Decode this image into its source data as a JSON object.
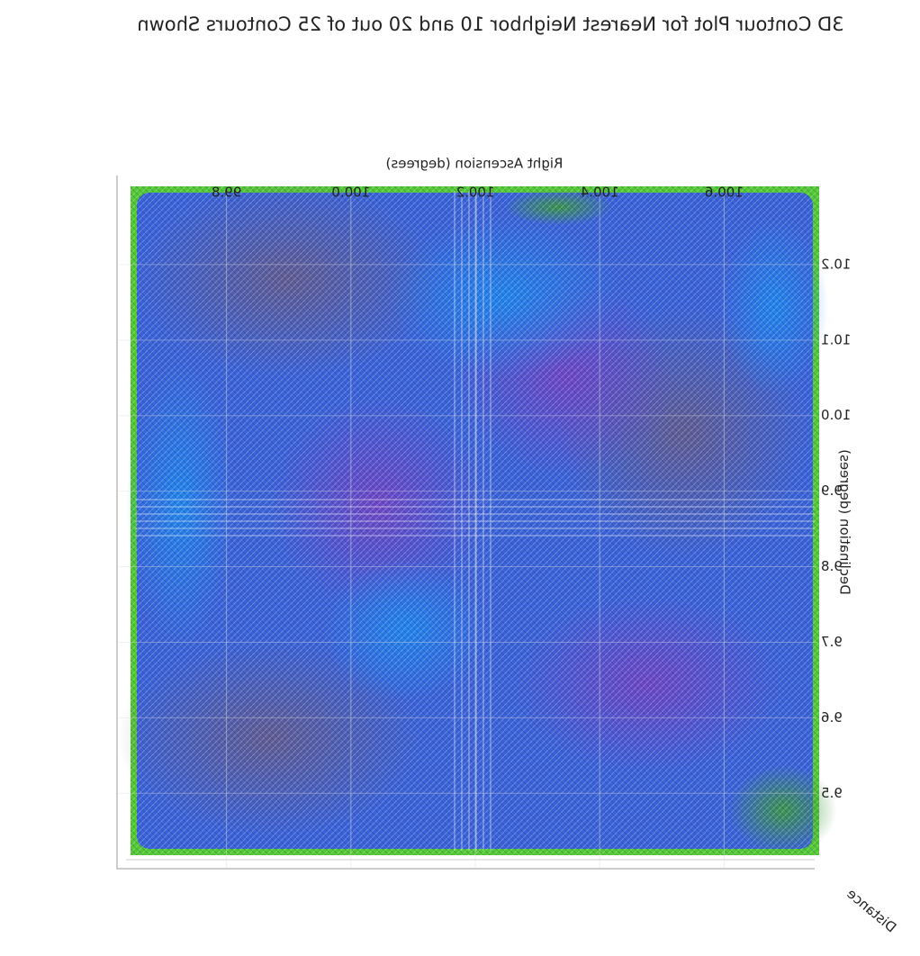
{
  "chart_data": {
    "type": "contour3d",
    "title": "3D Contour Plot for Nearest Neighbor 10 and 20 out of 25 Contours Shown",
    "x_label": "Right Ascension (degrees)",
    "y_label": "Declination (degrees)",
    "z_label": "Distance",
    "xlim": [
      99.65,
      100.75
    ],
    "xticks": [
      99.8,
      {
        "value": 100.0,
        "label": "100.0"
      },
      100.2,
      100.4,
      100.6
    ],
    "ylim": [
      9.43,
      10.3
    ],
    "yticks": [
      9.5,
      9.6,
      9.7,
      9.8,
      9.9,
      {
        "value": 10.0,
        "label": "10.0"
      },
      10.1,
      10.2
    ],
    "mirrored": true
  }
}
